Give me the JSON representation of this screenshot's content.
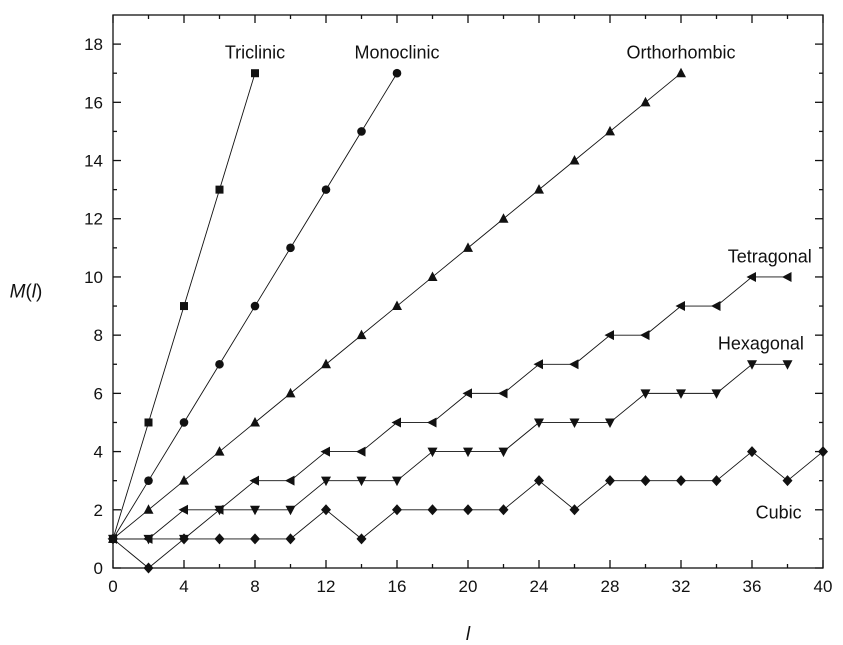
{
  "chart_data": {
    "type": "line",
    "xlabel": "l",
    "ylabel": "M(l)",
    "xlim": [
      0,
      40
    ],
    "ylim": [
      0,
      19
    ],
    "xticks": [
      0,
      4,
      8,
      12,
      16,
      20,
      24,
      28,
      32,
      36,
      40
    ],
    "xticks_minor": [
      2,
      6,
      10,
      14,
      18,
      22,
      26,
      30,
      34,
      38
    ],
    "yticks": [
      0,
      2,
      4,
      6,
      8,
      10,
      12,
      14,
      16,
      18
    ],
    "grid": false,
    "legend": "none",
    "series": [
      {
        "name": "Triclinic",
        "marker": "square",
        "x": [
          0,
          2,
          4,
          6,
          8
        ],
        "y": [
          1,
          5,
          9,
          13,
          17
        ]
      },
      {
        "name": "Monoclinic",
        "marker": "circle",
        "x": [
          0,
          2,
          4,
          6,
          8,
          10,
          12,
          14,
          16
        ],
        "y": [
          1,
          3,
          5,
          7,
          9,
          11,
          13,
          15,
          17
        ]
      },
      {
        "name": "Orthorhombic",
        "marker": "triangle-up",
        "x": [
          0,
          2,
          4,
          6,
          8,
          10,
          12,
          14,
          16,
          18,
          20,
          22,
          24,
          26,
          28,
          30,
          32
        ],
        "y": [
          1,
          2,
          3,
          4,
          5,
          6,
          7,
          8,
          9,
          10,
          11,
          12,
          13,
          14,
          15,
          16,
          17
        ]
      },
      {
        "name": "Tetragonal",
        "marker": "triangle-left",
        "x": [
          0,
          2,
          4,
          6,
          8,
          10,
          12,
          14,
          16,
          18,
          20,
          22,
          24,
          26,
          28,
          30,
          32,
          34,
          36,
          38
        ],
        "y": [
          1,
          1,
          2,
          2,
          3,
          3,
          4,
          4,
          5,
          5,
          6,
          6,
          7,
          7,
          8,
          8,
          9,
          9,
          10,
          10
        ]
      },
      {
        "name": "Hexagonal",
        "marker": "triangle-down",
        "x": [
          0,
          2,
          4,
          6,
          8,
          10,
          12,
          14,
          16,
          18,
          20,
          22,
          24,
          26,
          28,
          30,
          32,
          34,
          36,
          38
        ],
        "y": [
          1,
          1,
          1,
          2,
          2,
          2,
          3,
          3,
          3,
          4,
          4,
          4,
          5,
          5,
          5,
          6,
          6,
          6,
          7,
          7
        ]
      },
      {
        "name": "Cubic",
        "marker": "diamond",
        "x": [
          0,
          2,
          4,
          6,
          8,
          10,
          12,
          14,
          16,
          18,
          20,
          22,
          24,
          26,
          28,
          30,
          32,
          34,
          36,
          38,
          40
        ],
        "y": [
          1,
          0,
          1,
          1,
          1,
          1,
          2,
          1,
          2,
          2,
          2,
          2,
          3,
          2,
          3,
          3,
          3,
          3,
          4,
          3,
          4
        ]
      }
    ],
    "annotations": [
      {
        "text": "Triclinic",
        "x": 8,
        "y": 17.5,
        "anchor": "middle"
      },
      {
        "text": "Monoclinic",
        "x": 16,
        "y": 17.5,
        "anchor": "middle"
      },
      {
        "text": "Orthorhombic",
        "x": 32,
        "y": 17.5,
        "anchor": "middle"
      },
      {
        "text": "Tetragonal",
        "x": 37,
        "y": 10.5,
        "anchor": "middle"
      },
      {
        "text": "Hexagonal",
        "x": 36.5,
        "y": 7.5,
        "anchor": "middle"
      },
      {
        "text": "Cubic",
        "x": 37.5,
        "y": 1.7,
        "anchor": "middle"
      }
    ]
  }
}
